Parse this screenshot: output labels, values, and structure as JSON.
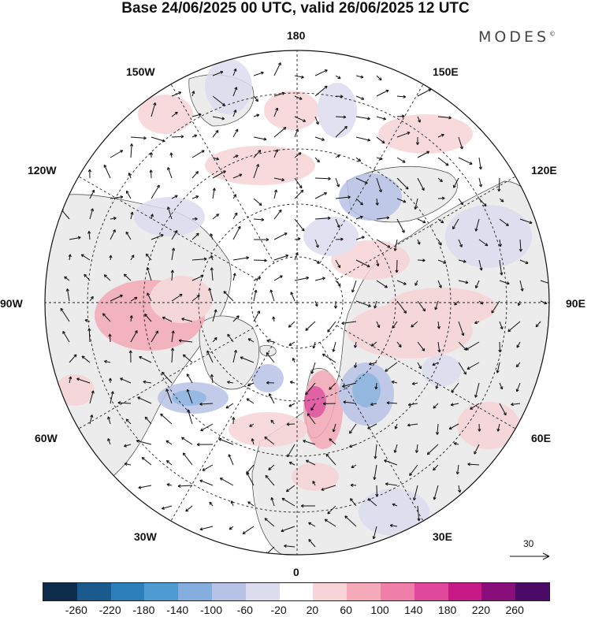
{
  "title": "Base 24/06/2025 00 UTC, valid 26/06/2025 12 UTC",
  "brand": {
    "name": "MODES",
    "mark": "©"
  },
  "map": {
    "projection": "north polar stereographic",
    "longitude_labels": [
      "180",
      "150E",
      "120E",
      "90E",
      "60E",
      "30E",
      "0",
      "30W",
      "60W",
      "90W",
      "120W",
      "150W"
    ],
    "graticule": "dashed",
    "land_color": "#ececec",
    "ocean_color": "#ffffff"
  },
  "vector_scale": {
    "value": "30"
  },
  "colorbar": {
    "colors": [
      "#0d2c4c",
      "#1a5a8c",
      "#2c7fb8",
      "#4d9bd0",
      "#85aede",
      "#b8c2e6",
      "#dcdcef",
      "#ffffff",
      "#f7d4d8",
      "#f4aab8",
      "#ef7fa8",
      "#e0499b",
      "#c71a86",
      "#8a0d7c",
      "#4b0a66"
    ],
    "ticks": [
      "-260",
      "-220",
      "-180",
      "-140",
      "-100",
      "-60",
      "-20",
      "20",
      "60",
      "100",
      "140",
      "180",
      "220",
      "260"
    ]
  }
}
